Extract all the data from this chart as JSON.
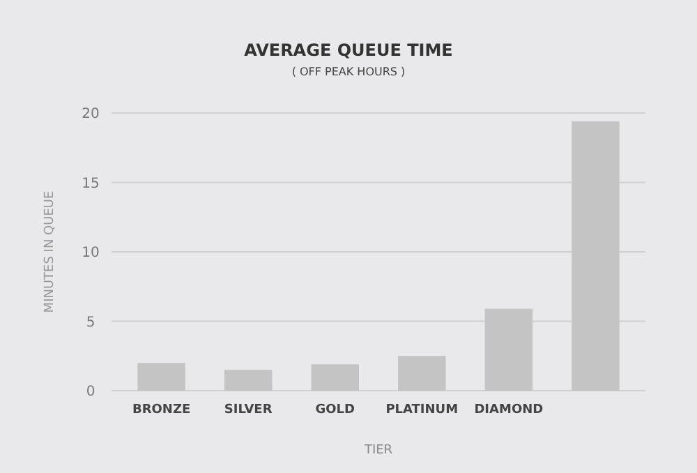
{
  "chart_data": {
    "type": "bar",
    "title": "AVERAGE QUEUE TIME",
    "subtitle": "( OFF PEAK HOURS )",
    "xlabel": "TIER",
    "ylabel": "MINUTES IN QUEUE",
    "categories": [
      "BRONZE",
      "SILVER",
      "GOLD",
      "PLATINUM",
      "DIAMOND",
      null
    ],
    "values": [
      2.0,
      1.5,
      1.9,
      2.5,
      5.9,
      19.4
    ],
    "color": "#c4c4c4",
    "ylim": [
      0,
      20
    ],
    "yticks": [
      0,
      5,
      10,
      15,
      20
    ],
    "grid": "y"
  }
}
